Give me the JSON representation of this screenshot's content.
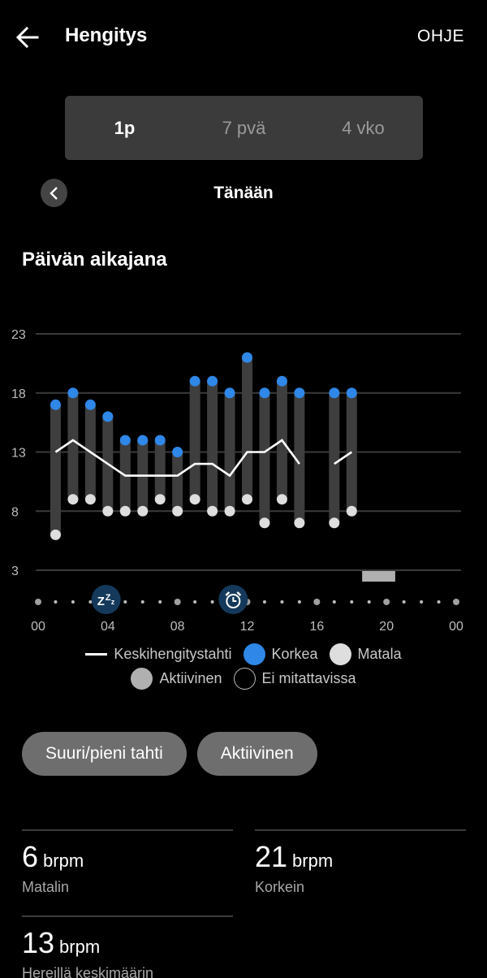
{
  "appbar": {
    "title": "Hengitys",
    "help_label": "OHJE",
    "back_icon": "arrow-left-icon"
  },
  "range_tabs": [
    {
      "label": "1p",
      "active": true
    },
    {
      "label": "7 pvä",
      "active": false
    },
    {
      "label": "4 vko",
      "active": false
    }
  ],
  "date_nav": {
    "label": "Tänään",
    "prev_icon": "chevron-left-icon"
  },
  "section": {
    "title": "Päivän aikajana"
  },
  "colors": {
    "background": "#000000",
    "bar": "#3e3e3e",
    "high": "#2f87e8",
    "low": "#dedede",
    "active": "#b0b0b0",
    "avg_line": "#ffffff",
    "grid": "#3a3a3a",
    "marker_bg": "#14395b",
    "chip": "#6e6e6e",
    "segment_bg": "#3b3b3b"
  },
  "chart_data": {
    "type": "bar",
    "title": "Päivän aikajana",
    "xlabel": "",
    "ylabel": "brpm",
    "ylim": [
      3,
      23
    ],
    "yticks": [
      23,
      18,
      13,
      8,
      3
    ],
    "xlim": [
      0,
      24
    ],
    "xticks": [
      "00",
      "04",
      "08",
      "12",
      "16",
      "20",
      "00"
    ],
    "grid": true,
    "legend_position": "bottom",
    "hours": [
      1,
      2,
      3,
      4,
      5,
      6,
      7,
      8,
      9,
      10,
      11,
      12,
      13,
      14,
      15,
      17,
      18
    ],
    "series": [
      {
        "name": "Korkea",
        "values": [
          17,
          18,
          17,
          16,
          14,
          14,
          14,
          13,
          19,
          19,
          18,
          21,
          18,
          19,
          18,
          18,
          18
        ]
      },
      {
        "name": "Matala",
        "values": [
          6,
          9,
          9,
          8,
          8,
          8,
          9,
          8,
          9,
          8,
          8,
          9,
          7,
          9,
          7,
          7,
          8
        ]
      },
      {
        "name": "Keskihengitystahti",
        "values": [
          13,
          14,
          13,
          12,
          11,
          11,
          11,
          11,
          12,
          12,
          11,
          13,
          13,
          14,
          12,
          12,
          13
        ]
      }
    ],
    "avg_line_segments": [
      [
        0,
        14
      ],
      [
        15,
        16
      ]
    ],
    "active_periods": [
      {
        "start_hour": 18.6,
        "end_hour": 20.5
      }
    ],
    "event_markers": [
      {
        "hour": 3.9,
        "icon": "sleep-zzz-icon",
        "label": "Uni"
      },
      {
        "hour": 11.2,
        "icon": "alarm-clock-icon",
        "label": "Herätys"
      }
    ]
  },
  "legend": [
    {
      "label": "Keskihengitystahti",
      "type": "line",
      "color": "#ffffff"
    },
    {
      "label": "Korkea",
      "type": "dot",
      "color": "#2f87e8"
    },
    {
      "label": "Matala",
      "type": "dot",
      "color": "#dedede"
    },
    {
      "label": "Aktiivinen",
      "type": "dot",
      "color": "#b0b0b0"
    },
    {
      "label": "Ei mitattavissa",
      "type": "ring",
      "color": "#000000"
    }
  ],
  "filter_chips": [
    {
      "label": "Suuri/pieni tahti"
    },
    {
      "label": "Aktiivinen"
    }
  ],
  "stats": [
    {
      "value": "6",
      "unit": "brpm",
      "label": "Matalin"
    },
    {
      "value": "21",
      "unit": "brpm",
      "label": "Korkein"
    },
    {
      "value": "13",
      "unit": "brpm",
      "label": "Hereillä keskimäärin"
    }
  ]
}
